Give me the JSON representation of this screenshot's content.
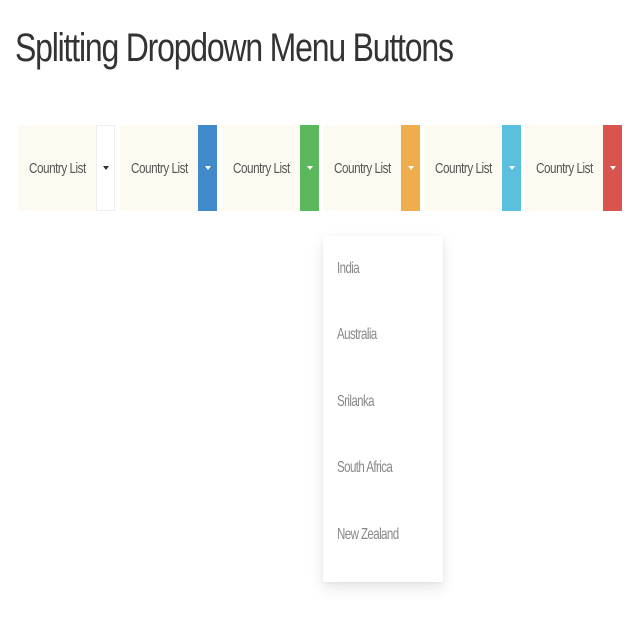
{
  "page": {
    "title": "Splitting Dropdown Menu Buttons"
  },
  "buttons": [
    {
      "label": "Country List",
      "variant": "default",
      "toggle_color": "#ffffff",
      "caret_icon": "caret-down-icon"
    },
    {
      "label": "Country List",
      "variant": "primary",
      "toggle_color": "#428bca",
      "caret_icon": "caret-down-icon"
    },
    {
      "label": "Country List",
      "variant": "success",
      "toggle_color": "#5cb85c",
      "caret_icon": "caret-down-icon"
    },
    {
      "label": "Country List",
      "variant": "warning",
      "toggle_color": "#f0ad4e",
      "caret_icon": "caret-down-icon"
    },
    {
      "label": "Country List",
      "variant": "info",
      "toggle_color": "#5bc0de",
      "caret_icon": "caret-down-icon"
    },
    {
      "label": "Country List",
      "variant": "danger",
      "toggle_color": "#d9534f",
      "caret_icon": "caret-down-icon"
    }
  ],
  "dropdown": {
    "open_on_button": 3,
    "items": [
      "India",
      "Australia",
      "Srilanka",
      "South Africa",
      "New Zealand"
    ]
  }
}
